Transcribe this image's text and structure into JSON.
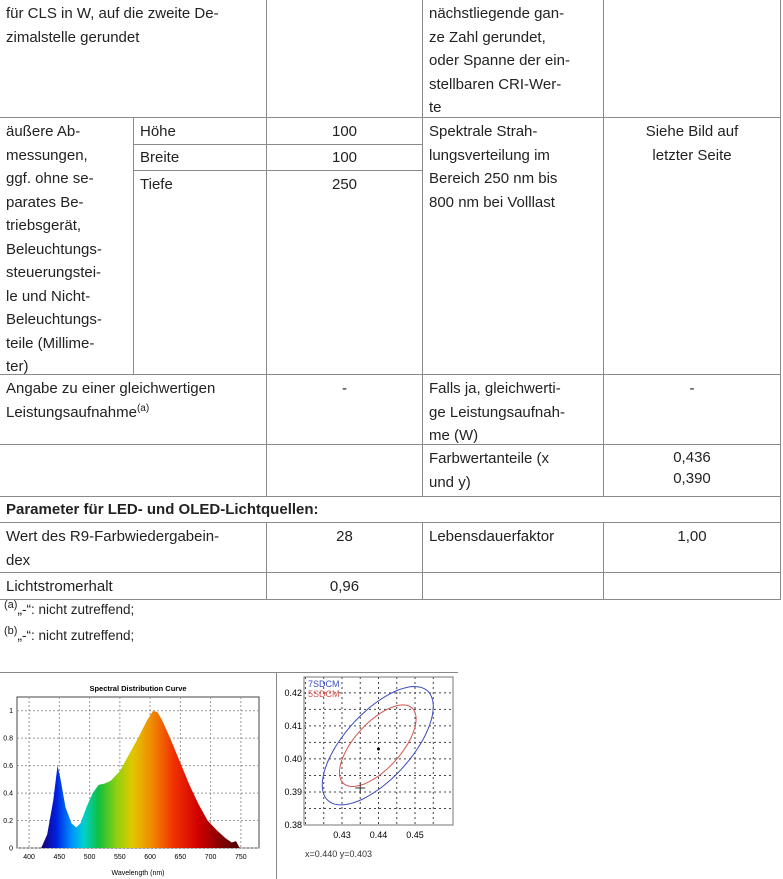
{
  "table": {
    "r1": {
      "c0": "für CLS in W, auf die zweite De-\nzimalstelle gerundet",
      "c3": "nächstliegende gan-\nze Zahl gerundet,\noder Spanne der ein-\nstellbaren CRI-Wer-\nte"
    },
    "r2": {
      "c0": "äußere Ab-\nmessungen,\nggf. ohne se-\nparates Be-\ntriebsgerät,\nBeleuchtungs-\nsteuerungstei-\nle und Nicht-\nBeleuchtungs-\nteile (Millime-\nter)",
      "dims": [
        {
          "label": "Höhe",
          "value": "100"
        },
        {
          "label": "Breite",
          "value": "100"
        },
        {
          "label": "Tiefe",
          "value": "250"
        }
      ],
      "c3": "Spektrale Strah-\nlungsverteilung im\nBereich 250 nm bis\n800 nm bei Volllast",
      "c4": "Siehe Bild auf\nletzter Seite"
    },
    "r3": {
      "c0": "Angabe zu einer gleichwertigen\nLeistungsaufnahme",
      "c0_sup": "(a)",
      "c2": "-",
      "c3": "Falls ja, gleichwerti-\nge Leistungsaufnah-\nme (W)",
      "c4": "-"
    },
    "r4": {
      "c3": "Farbwertanteile (x\nund y)",
      "c4": "0,436\n0,390"
    },
    "r5": {
      "header": "Parameter für LED- und OLED-Lichtquellen:"
    },
    "r6": {
      "c0": "Wert des R9-Farbwiedergabein-\ndex",
      "c2": "28",
      "c3": "Lebensdauerfaktor",
      "c4": "1,00"
    },
    "r7": {
      "c0": "Lichtstromerhalt",
      "c2": "0,96"
    }
  },
  "footnotes": [
    {
      "mark": "(a)",
      "text": "„-“: nicht zutreffend;"
    },
    {
      "mark": "(b)",
      "text": "„-“: nicht zutreffend;"
    }
  ],
  "chart_data": [
    {
      "type": "area",
      "title": "Spectral Distribution Curve",
      "xlabel": "Wavelength  (nm)",
      "ylabel": "",
      "xlim": [
        380,
        780
      ],
      "ylim": [
        0,
        1.1
      ],
      "grid": true,
      "xticks": [
        "400",
        "450",
        "500",
        "550",
        "600",
        "650",
        "700",
        "750"
      ],
      "yticks": [
        "0",
        "0.2",
        "0.4",
        "0.6",
        "0.8",
        "1"
      ],
      "x": [
        420,
        430,
        440,
        447,
        452,
        460,
        470,
        478,
        485,
        495,
        505,
        515,
        525,
        535,
        550,
        565,
        580,
        595,
        605,
        612,
        620,
        635,
        650,
        665,
        680,
        695,
        710,
        725,
        735,
        742,
        748
      ],
      "y": [
        0,
        0.1,
        0.35,
        0.6,
        0.5,
        0.3,
        0.18,
        0.15,
        0.18,
        0.3,
        0.4,
        0.46,
        0.47,
        0.49,
        0.56,
        0.68,
        0.8,
        0.93,
        1.0,
        0.99,
        0.93,
        0.78,
        0.62,
        0.46,
        0.32,
        0.2,
        0.13,
        0.07,
        0.04,
        0.05,
        0
      ]
    },
    {
      "type": "scatter",
      "xlim": [
        0.4196,
        0.4604
      ],
      "ylim": [
        0.38,
        0.4248
      ],
      "grid": true,
      "xticks": [
        "0.43",
        "0.44",
        "0.45"
      ],
      "yticks": [
        "0.42",
        "0.41",
        "0.40",
        "0.39",
        "0.38"
      ],
      "ellipses": [
        {
          "name": "7SDCM",
          "color": "#3b4bbf",
          "cx": 0.4398,
          "cy": 0.404,
          "a": 0.0215,
          "b": 0.0095,
          "angle_deg": 52
        },
        {
          "name": "5SDCM",
          "color": "#d9534f",
          "cx": 0.4398,
          "cy": 0.404,
          "a": 0.0148,
          "b": 0.0066,
          "angle_deg": 52
        }
      ],
      "point": {
        "x": 0.44,
        "y": 0.403
      },
      "target": {
        "x": 0.435,
        "y": 0.3912
      },
      "readout": "x=0.440   y=0.403"
    }
  ]
}
